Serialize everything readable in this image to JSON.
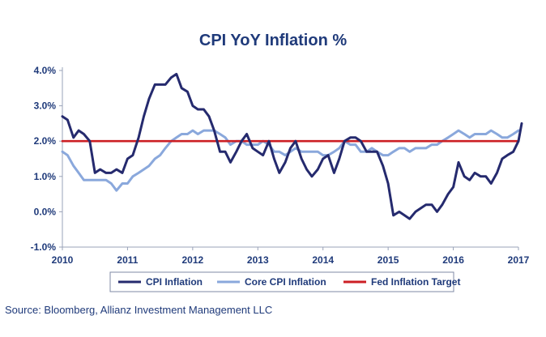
{
  "chart_data": {
    "type": "line",
    "title": "CPI YoY Inflation %",
    "xlabel": "",
    "ylabel": "",
    "x_tick_labels": [
      "2010",
      "2011",
      "2012",
      "2013",
      "2014",
      "2015",
      "2016",
      "2017"
    ],
    "y_tick_labels": [
      "-1.0%",
      "0.0%",
      "1.0%",
      "2.0%",
      "3.0%",
      "4.0%"
    ],
    "xlim": [
      2010,
      2017
    ],
    "ylim": [
      -1.0,
      4.0
    ],
    "grid": false,
    "legend": {
      "placement": "bottom-center",
      "entries": [
        "CPI Inflation",
        "Core CPI Inflation",
        "Fed Inflation Target"
      ]
    },
    "series": [
      {
        "name": "CPI Inflation",
        "color": "#252a6e",
        "values": [
          [
            2010.0,
            2.7
          ],
          [
            2010.08,
            2.6
          ],
          [
            2010.17,
            2.1
          ],
          [
            2010.25,
            2.3
          ],
          [
            2010.33,
            2.2
          ],
          [
            2010.42,
            2.0
          ],
          [
            2010.5,
            1.1
          ],
          [
            2010.58,
            1.2
          ],
          [
            2010.67,
            1.1
          ],
          [
            2010.75,
            1.1
          ],
          [
            2010.83,
            1.2
          ],
          [
            2010.92,
            1.1
          ],
          [
            2011.0,
            1.5
          ],
          [
            2011.08,
            1.6
          ],
          [
            2011.17,
            2.1
          ],
          [
            2011.25,
            2.7
          ],
          [
            2011.33,
            3.2
          ],
          [
            2011.42,
            3.6
          ],
          [
            2011.5,
            3.6
          ],
          [
            2011.58,
            3.6
          ],
          [
            2011.67,
            3.8
          ],
          [
            2011.75,
            3.9
          ],
          [
            2011.83,
            3.5
          ],
          [
            2011.92,
            3.4
          ],
          [
            2012.0,
            3.0
          ],
          [
            2012.08,
            2.9
          ],
          [
            2012.17,
            2.9
          ],
          [
            2012.25,
            2.7
          ],
          [
            2012.33,
            2.3
          ],
          [
            2012.42,
            1.7
          ],
          [
            2012.5,
            1.7
          ],
          [
            2012.58,
            1.4
          ],
          [
            2012.67,
            1.7
          ],
          [
            2012.75,
            2.0
          ],
          [
            2012.83,
            2.2
          ],
          [
            2012.92,
            1.8
          ],
          [
            2013.0,
            1.7
          ],
          [
            2013.08,
            1.6
          ],
          [
            2013.17,
            2.0
          ],
          [
            2013.25,
            1.5
          ],
          [
            2013.33,
            1.1
          ],
          [
            2013.42,
            1.4
          ],
          [
            2013.5,
            1.8
          ],
          [
            2013.58,
            2.0
          ],
          [
            2013.67,
            1.5
          ],
          [
            2013.75,
            1.2
          ],
          [
            2013.83,
            1.0
          ],
          [
            2013.92,
            1.2
          ],
          [
            2014.0,
            1.5
          ],
          [
            2014.08,
            1.6
          ],
          [
            2014.17,
            1.1
          ],
          [
            2014.25,
            1.5
          ],
          [
            2014.33,
            2.0
          ],
          [
            2014.42,
            2.1
          ],
          [
            2014.5,
            2.1
          ],
          [
            2014.58,
            2.0
          ],
          [
            2014.67,
            1.7
          ],
          [
            2014.75,
            1.7
          ],
          [
            2014.83,
            1.7
          ],
          [
            2014.92,
            1.3
          ],
          [
            2015.0,
            0.8
          ],
          [
            2015.08,
            -0.1
          ],
          [
            2015.17,
            0.0
          ],
          [
            2015.25,
            -0.1
          ],
          [
            2015.33,
            -0.2
          ],
          [
            2015.42,
            0.0
          ],
          [
            2015.5,
            0.1
          ],
          [
            2015.58,
            0.2
          ],
          [
            2015.67,
            0.2
          ],
          [
            2015.75,
            0.0
          ],
          [
            2015.83,
            0.2
          ],
          [
            2015.92,
            0.5
          ],
          [
            2016.0,
            0.7
          ],
          [
            2016.08,
            1.4
          ],
          [
            2016.17,
            1.0
          ],
          [
            2016.25,
            0.9
          ],
          [
            2016.33,
            1.1
          ],
          [
            2016.42,
            1.0
          ],
          [
            2016.5,
            1.0
          ],
          [
            2016.58,
            0.8
          ],
          [
            2016.67,
            1.1
          ],
          [
            2016.75,
            1.5
          ],
          [
            2016.83,
            1.6
          ],
          [
            2016.92,
            1.7
          ],
          [
            2017.0,
            2.0
          ],
          [
            2017.05,
            2.5
          ]
        ]
      },
      {
        "name": "Core CPI Inflation",
        "color": "#8aa8dc",
        "values": [
          [
            2010.0,
            1.7
          ],
          [
            2010.08,
            1.6
          ],
          [
            2010.17,
            1.3
          ],
          [
            2010.25,
            1.1
          ],
          [
            2010.33,
            0.9
          ],
          [
            2010.42,
            0.9
          ],
          [
            2010.5,
            0.9
          ],
          [
            2010.58,
            0.9
          ],
          [
            2010.67,
            0.9
          ],
          [
            2010.75,
            0.8
          ],
          [
            2010.83,
            0.6
          ],
          [
            2010.92,
            0.8
          ],
          [
            2011.0,
            0.8
          ],
          [
            2011.08,
            1.0
          ],
          [
            2011.17,
            1.1
          ],
          [
            2011.25,
            1.2
          ],
          [
            2011.33,
            1.3
          ],
          [
            2011.42,
            1.5
          ],
          [
            2011.5,
            1.6
          ],
          [
            2011.58,
            1.8
          ],
          [
            2011.67,
            2.0
          ],
          [
            2011.75,
            2.1
          ],
          [
            2011.83,
            2.2
          ],
          [
            2011.92,
            2.2
          ],
          [
            2012.0,
            2.3
          ],
          [
            2012.08,
            2.2
          ],
          [
            2012.17,
            2.3
          ],
          [
            2012.25,
            2.3
          ],
          [
            2012.33,
            2.3
          ],
          [
            2012.42,
            2.2
          ],
          [
            2012.5,
            2.1
          ],
          [
            2012.58,
            1.9
          ],
          [
            2012.67,
            2.0
          ],
          [
            2012.75,
            2.0
          ],
          [
            2012.83,
            1.9
          ],
          [
            2012.92,
            1.9
          ],
          [
            2013.0,
            1.9
          ],
          [
            2013.08,
            2.0
          ],
          [
            2013.17,
            1.9
          ],
          [
            2013.25,
            1.7
          ],
          [
            2013.33,
            1.7
          ],
          [
            2013.42,
            1.6
          ],
          [
            2013.5,
            1.7
          ],
          [
            2013.58,
            1.8
          ],
          [
            2013.67,
            1.7
          ],
          [
            2013.75,
            1.7
          ],
          [
            2013.83,
            1.7
          ],
          [
            2013.92,
            1.7
          ],
          [
            2014.0,
            1.6
          ],
          [
            2014.08,
            1.6
          ],
          [
            2014.17,
            1.7
          ],
          [
            2014.25,
            1.8
          ],
          [
            2014.33,
            2.0
          ],
          [
            2014.42,
            1.9
          ],
          [
            2014.5,
            1.9
          ],
          [
            2014.58,
            1.7
          ],
          [
            2014.67,
            1.7
          ],
          [
            2014.75,
            1.8
          ],
          [
            2014.83,
            1.7
          ],
          [
            2014.92,
            1.6
          ],
          [
            2015.0,
            1.6
          ],
          [
            2015.08,
            1.7
          ],
          [
            2015.17,
            1.8
          ],
          [
            2015.25,
            1.8
          ],
          [
            2015.33,
            1.7
          ],
          [
            2015.42,
            1.8
          ],
          [
            2015.5,
            1.8
          ],
          [
            2015.58,
            1.8
          ],
          [
            2015.67,
            1.9
          ],
          [
            2015.75,
            1.9
          ],
          [
            2015.83,
            2.0
          ],
          [
            2015.92,
            2.1
          ],
          [
            2016.0,
            2.2
          ],
          [
            2016.08,
            2.3
          ],
          [
            2016.17,
            2.2
          ],
          [
            2016.25,
            2.1
          ],
          [
            2016.33,
            2.2
          ],
          [
            2016.42,
            2.2
          ],
          [
            2016.5,
            2.2
          ],
          [
            2016.58,
            2.3
          ],
          [
            2016.67,
            2.2
          ],
          [
            2016.75,
            2.1
          ],
          [
            2016.83,
            2.1
          ],
          [
            2016.92,
            2.2
          ],
          [
            2017.0,
            2.3
          ]
        ]
      },
      {
        "name": "Fed Inflation Target",
        "color": "#cc1f24",
        "values": [
          [
            2010.0,
            2.0
          ],
          [
            2017.0,
            2.0
          ]
        ]
      }
    ]
  },
  "source_note": "Source: Bloomberg, Allianz Investment Management LLC"
}
